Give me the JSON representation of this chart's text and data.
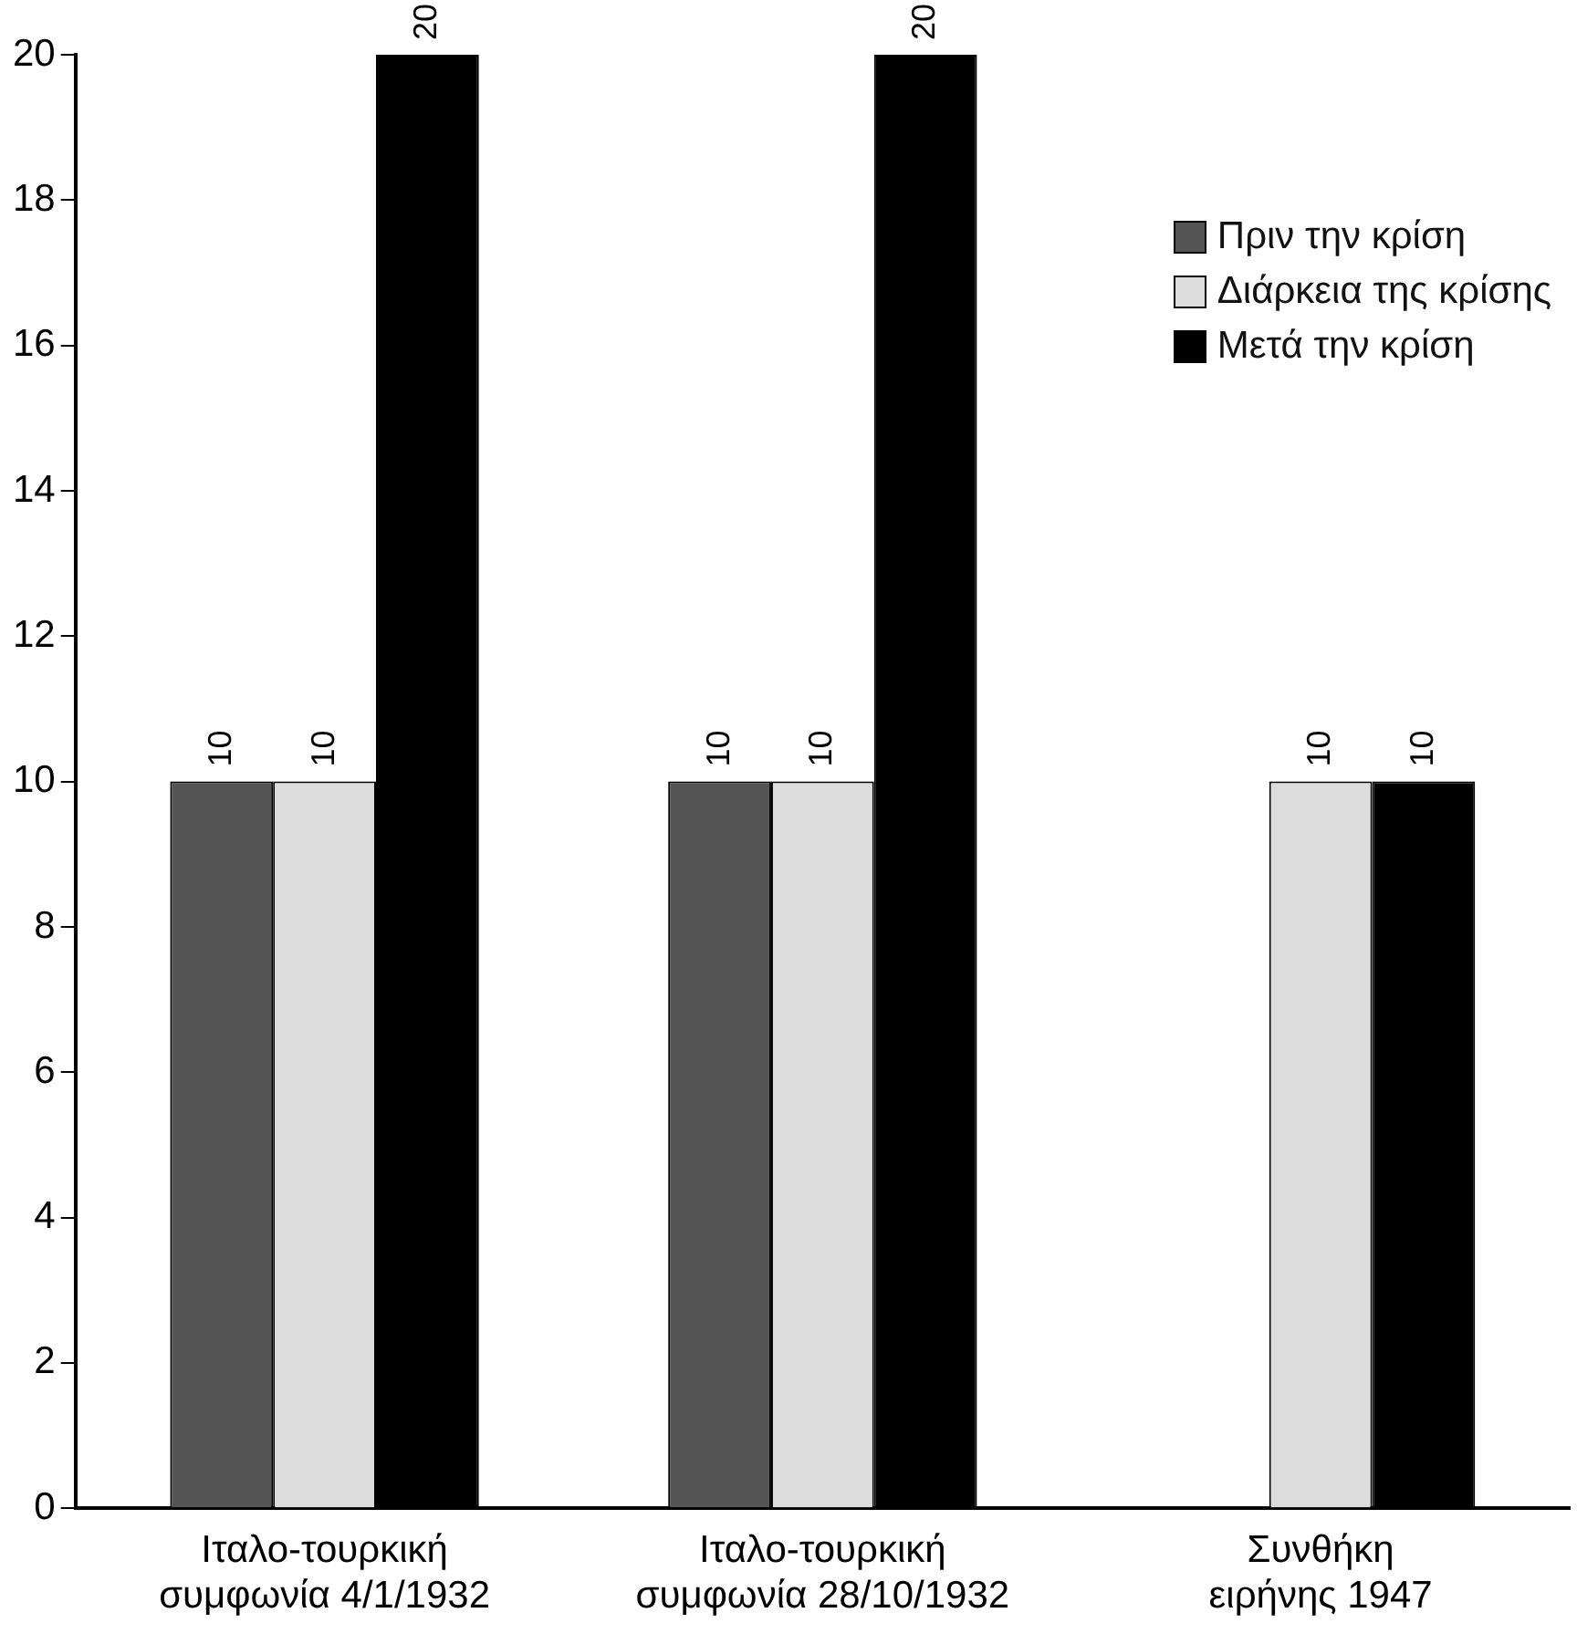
{
  "chart_data": {
    "type": "bar",
    "categories": [
      "Ιταλο-τουρκική\nσυμφωνία 4/1/1932",
      "Ιταλο-τουρκική\nσυμφωνία 28/10/1932",
      "Συνθήκη\nειρήνης 1947"
    ],
    "series": [
      {
        "name": "Πριν την κρίση",
        "color": "#555555",
        "values": [
          10,
          10,
          null
        ]
      },
      {
        "name": "Διάρκεια της κρίσης",
        "color": "#dcdcdc",
        "values": [
          10,
          10,
          10
        ]
      },
      {
        "name": "Μετά την κρίση",
        "color": "#000000",
        "values": [
          20,
          20,
          10
        ]
      }
    ],
    "ylim": [
      0,
      20
    ],
    "yticks": [
      0,
      2,
      4,
      6,
      8,
      10,
      12,
      14,
      16,
      18,
      20
    ],
    "grid": false,
    "legend": "top right",
    "data_labels": true
  }
}
